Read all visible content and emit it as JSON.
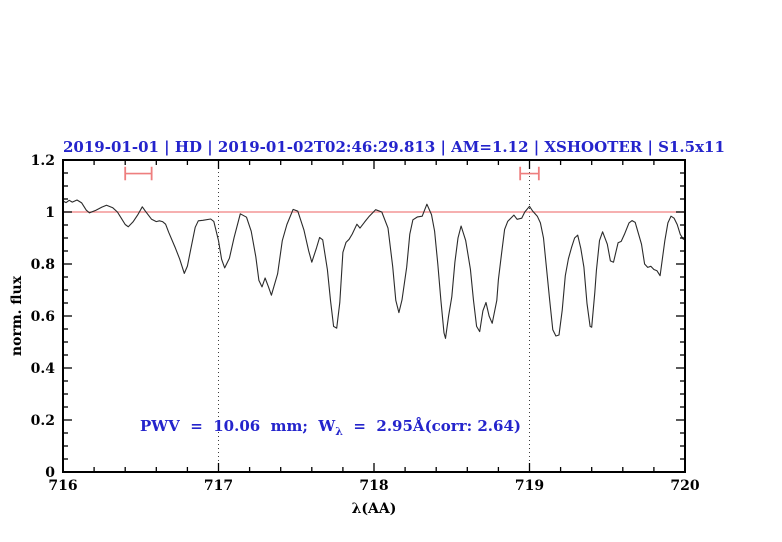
{
  "background": "#ffffff",
  "title": {
    "text": "2019-01-01 | HD | 2019-01-02T02:46:29.813 | AM=1.12 | XSHOOTER | S1.5x11"
  },
  "annotation": {
    "part1": "PWV  =  10.06  mm;  W",
    "subscript": "λ",
    "part2": "  =  2.95Å(corr: 2.64)"
  },
  "colors": {
    "title_blue": "#2424cc",
    "annotation_blue": "#2424cc",
    "continuum_red": "#f08080",
    "marker_red": "#ee7e7e",
    "spectrum": "#2b2b2b",
    "dotted_gray": "#3c3c3c",
    "axis_black": "#000000"
  },
  "chart_data": {
    "type": "line",
    "title": "2019-01-01 | HD | 2019-01-02T02:46:29.813 | AM=1.12 | XSHOOTER | S1.5x11",
    "xlabel": "λ(AA)",
    "ylabel": "norm. flux",
    "xlim": [
      716,
      720
    ],
    "ylim": [
      0,
      1.2
    ],
    "grid": false,
    "legend": "none",
    "x_major_ticks": [
      716,
      717,
      718,
      719,
      720
    ],
    "x_major_labels": [
      "716",
      "717",
      "718",
      "719",
      "720"
    ],
    "x_minor_step": 0.2,
    "y_major_ticks": [
      0,
      0.2,
      0.4,
      0.6,
      0.8,
      1,
      1.2
    ],
    "y_major_labels": [
      "0",
      "0.2",
      "0.4",
      "0.6",
      "0.8",
      "1",
      "1.2"
    ],
    "y_minor_step": 0.05,
    "continuum_level": 1.0,
    "dotted_vlines": [
      717,
      719
    ],
    "interval_markers": [
      {
        "x_start": 716.4,
        "x_end": 716.57,
        "y": 1.148,
        "cap_half": 0.026
      },
      {
        "x_start": 718.94,
        "x_end": 719.06,
        "y": 1.148,
        "cap_half": 0.026
      }
    ],
    "series": [
      {
        "name": "normalized telluric spectrum",
        "points": [
          [
            716.0,
            1.042
          ],
          [
            716.02,
            1.036
          ],
          [
            716.04,
            1.045
          ],
          [
            716.06,
            1.038
          ],
          [
            716.09,
            1.046
          ],
          [
            716.12,
            1.035
          ],
          [
            716.15,
            1.007
          ],
          [
            716.17,
            0.997
          ],
          [
            716.21,
            1.006
          ],
          [
            716.25,
            1.019
          ],
          [
            716.28,
            1.026
          ],
          [
            716.32,
            1.016
          ],
          [
            716.35,
            1.0
          ],
          [
            716.37,
            0.981
          ],
          [
            716.4,
            0.952
          ],
          [
            716.42,
            0.943
          ],
          [
            716.45,
            0.962
          ],
          [
            716.48,
            0.988
          ],
          [
            716.51,
            1.02
          ],
          [
            716.53,
            1.003
          ],
          [
            716.57,
            0.972
          ],
          [
            716.6,
            0.963
          ],
          [
            716.62,
            0.966
          ],
          [
            716.64,
            0.963
          ],
          [
            716.66,
            0.953
          ],
          [
            716.68,
            0.922
          ],
          [
            716.72,
            0.865
          ],
          [
            716.75,
            0.82
          ],
          [
            716.78,
            0.764
          ],
          [
            716.8,
            0.792
          ],
          [
            716.82,
            0.852
          ],
          [
            716.85,
            0.941
          ],
          [
            716.87,
            0.966
          ],
          [
            716.9,
            0.968
          ],
          [
            716.95,
            0.973
          ],
          [
            716.97,
            0.964
          ],
          [
            717.0,
            0.89
          ],
          [
            717.02,
            0.818
          ],
          [
            717.04,
            0.785
          ],
          [
            717.07,
            0.822
          ],
          [
            717.1,
            0.902
          ],
          [
            717.14,
            0.993
          ],
          [
            717.18,
            0.98
          ],
          [
            717.21,
            0.926
          ],
          [
            717.24,
            0.828
          ],
          [
            717.26,
            0.737
          ],
          [
            717.28,
            0.712
          ],
          [
            717.3,
            0.746
          ],
          [
            717.32,
            0.714
          ],
          [
            717.34,
            0.68
          ],
          [
            717.38,
            0.762
          ],
          [
            717.41,
            0.89
          ],
          [
            717.44,
            0.952
          ],
          [
            717.48,
            1.01
          ],
          [
            717.51,
            1.003
          ],
          [
            717.55,
            0.93
          ],
          [
            717.58,
            0.85
          ],
          [
            717.6,
            0.807
          ],
          [
            717.63,
            0.862
          ],
          [
            717.65,
            0.902
          ],
          [
            717.67,
            0.893
          ],
          [
            717.7,
            0.778
          ],
          [
            717.72,
            0.66
          ],
          [
            717.74,
            0.56
          ],
          [
            717.76,
            0.553
          ],
          [
            717.78,
            0.652
          ],
          [
            717.8,
            0.845
          ],
          [
            717.82,
            0.883
          ],
          [
            717.84,
            0.895
          ],
          [
            717.86,
            0.915
          ],
          [
            717.89,
            0.953
          ],
          [
            717.91,
            0.938
          ],
          [
            717.94,
            0.962
          ],
          [
            717.97,
            0.984
          ],
          [
            718.01,
            1.009
          ],
          [
            718.05,
            1.0
          ],
          [
            718.09,
            0.938
          ],
          [
            718.12,
            0.79
          ],
          [
            718.14,
            0.66
          ],
          [
            718.16,
            0.613
          ],
          [
            718.18,
            0.662
          ],
          [
            718.21,
            0.788
          ],
          [
            718.23,
            0.915
          ],
          [
            718.25,
            0.97
          ],
          [
            718.28,
            0.981
          ],
          [
            718.31,
            0.984
          ],
          [
            718.34,
            1.03
          ],
          [
            718.37,
            0.99
          ],
          [
            718.39,
            0.926
          ],
          [
            718.41,
            0.8
          ],
          [
            718.43,
            0.66
          ],
          [
            718.45,
            0.535
          ],
          [
            718.46,
            0.514
          ],
          [
            718.48,
            0.6
          ],
          [
            718.5,
            0.674
          ],
          [
            718.52,
            0.807
          ],
          [
            718.54,
            0.9
          ],
          [
            718.56,
            0.946
          ],
          [
            718.59,
            0.89
          ],
          [
            718.62,
            0.78
          ],
          [
            718.64,
            0.66
          ],
          [
            718.66,
            0.56
          ],
          [
            718.68,
            0.54
          ],
          [
            718.7,
            0.62
          ],
          [
            718.72,
            0.652
          ],
          [
            718.74,
            0.6
          ],
          [
            718.76,
            0.572
          ],
          [
            718.79,
            0.66
          ],
          [
            718.8,
            0.74
          ],
          [
            718.82,
            0.838
          ],
          [
            718.84,
            0.933
          ],
          [
            718.86,
            0.964
          ],
          [
            718.88,
            0.976
          ],
          [
            718.9,
            0.988
          ],
          [
            718.92,
            0.972
          ],
          [
            718.95,
            0.976
          ],
          [
            718.97,
            1.0
          ],
          [
            719.0,
            1.022
          ],
          [
            719.02,
            1.004
          ],
          [
            719.05,
            0.984
          ],
          [
            719.07,
            0.958
          ],
          [
            719.09,
            0.9
          ],
          [
            719.11,
            0.78
          ],
          [
            719.13,
            0.66
          ],
          [
            719.15,
            0.547
          ],
          [
            719.17,
            0.523
          ],
          [
            719.19,
            0.527
          ],
          [
            719.21,
            0.622
          ],
          [
            719.23,
            0.755
          ],
          [
            719.25,
            0.82
          ],
          [
            719.27,
            0.863
          ],
          [
            719.29,
            0.9
          ],
          [
            719.31,
            0.911
          ],
          [
            719.33,
            0.86
          ],
          [
            719.35,
            0.788
          ],
          [
            719.37,
            0.648
          ],
          [
            719.39,
            0.56
          ],
          [
            719.4,
            0.557
          ],
          [
            719.42,
            0.69
          ],
          [
            719.43,
            0.775
          ],
          [
            719.45,
            0.89
          ],
          [
            719.47,
            0.924
          ],
          [
            719.5,
            0.876
          ],
          [
            719.52,
            0.812
          ],
          [
            719.54,
            0.807
          ],
          [
            719.57,
            0.882
          ],
          [
            719.59,
            0.887
          ],
          [
            719.61,
            0.914
          ],
          [
            719.64,
            0.958
          ],
          [
            719.66,
            0.967
          ],
          [
            719.68,
            0.96
          ],
          [
            719.72,
            0.876
          ],
          [
            719.74,
            0.8
          ],
          [
            719.76,
            0.787
          ],
          [
            719.78,
            0.791
          ],
          [
            719.8,
            0.779
          ],
          [
            719.82,
            0.774
          ],
          [
            719.84,
            0.755
          ],
          [
            719.87,
            0.889
          ],
          [
            719.89,
            0.958
          ],
          [
            719.91,
            0.984
          ],
          [
            719.93,
            0.976
          ],
          [
            719.95,
            0.952
          ],
          [
            719.97,
            0.914
          ],
          [
            719.99,
            0.895
          ]
        ]
      }
    ]
  }
}
